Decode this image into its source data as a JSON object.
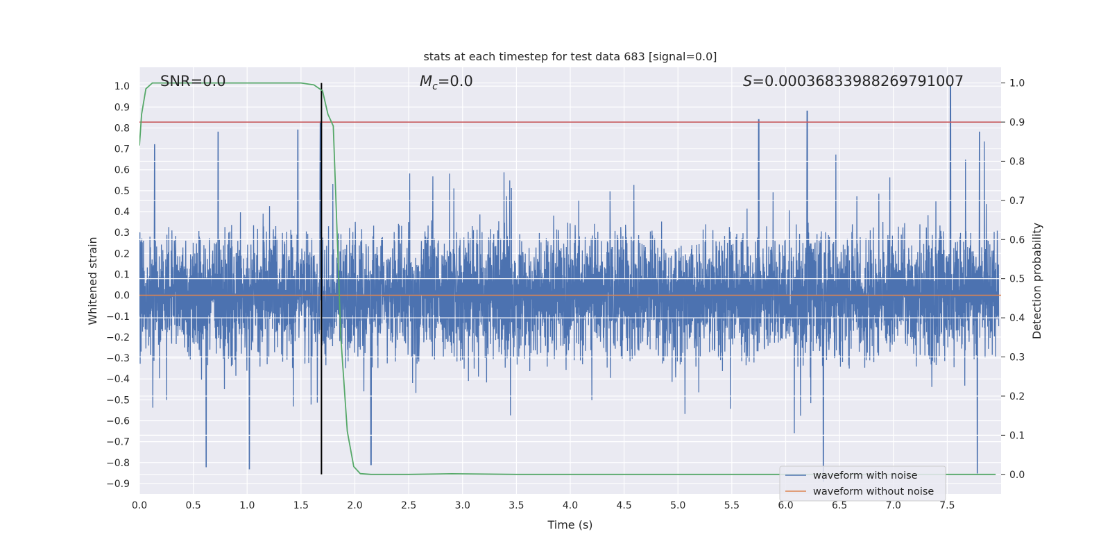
{
  "chart_data": {
    "type": "line",
    "title": "stats at each timestep for test data 683 [signal=0.0]",
    "xlabel": "Time (s)",
    "ylabel": "Whitened strain",
    "y2label": "Detection probability",
    "xlim": [
      0.0,
      8.0
    ],
    "ylim": [
      -0.95,
      1.09
    ],
    "y2lim": [
      -0.05,
      1.04
    ],
    "x_ticks": [
      "0.0",
      "0.5",
      "1.0",
      "1.5",
      "2.0",
      "2.5",
      "3.0",
      "3.5",
      "4.0",
      "4.5",
      "5.0",
      "5.5",
      "6.0",
      "6.5",
      "7.0",
      "7.5"
    ],
    "y_ticks": [
      "1.0",
      "0.9",
      "0.8",
      "0.7",
      "0.6",
      "0.5",
      "0.4",
      "0.3",
      "0.2",
      "0.1",
      "0.0",
      "-0.1",
      "-0.2",
      "-0.3",
      "-0.4",
      "-0.5",
      "-0.6",
      "-0.7",
      "-0.8",
      "-0.9"
    ],
    "y2_ticks": [
      "1.0",
      "0.9",
      "0.8",
      "0.7",
      "0.6",
      "0.5",
      "0.4",
      "0.3",
      "0.2",
      "0.1",
      "0.0"
    ],
    "annotations": {
      "snr": "SNR=0.0",
      "mc_symbol": "M",
      "mc_sub": "c",
      "mc_value": "=0.0",
      "s_symbol": "S",
      "s_value": "=0.00036833988269791007"
    },
    "legend": {
      "position": "lower-right",
      "entries": [
        "waveform with noise",
        "waveform without noise"
      ]
    },
    "colors": {
      "noise": "#4c72b0",
      "clean": "#dd8452",
      "probability": "#55a868",
      "threshold": "#c44e52",
      "marker": "#000000",
      "background": "#eaeaf2",
      "grid": "#ffffff"
    },
    "series": [
      {
        "name": "waveform with noise",
        "axis": "left",
        "style": "dense noise, amplitude approx 0.4 typical, peaks to about 1.0 near t=7.5 and dips to about -0.85",
        "peaks": [
          [
            0.14,
            0.72
          ],
          [
            0.73,
            0.78
          ],
          [
            1.47,
            0.79
          ],
          [
            1.68,
            0.83
          ],
          [
            5.75,
            0.84
          ],
          [
            6.2,
            0.88
          ],
          [
            7.53,
            1.0
          ],
          [
            7.8,
            0.78
          ]
        ],
        "troughs": [
          [
            0.62,
            -0.82
          ],
          [
            1.02,
            -0.83
          ],
          [
            2.15,
            -0.81
          ],
          [
            6.35,
            -0.89
          ],
          [
            7.78,
            -0.85
          ]
        ]
      },
      {
        "name": "waveform without noise",
        "axis": "left",
        "x": [
          0.0,
          8.0
        ],
        "y": [
          0.0,
          0.0
        ]
      },
      {
        "name": "detection probability",
        "axis": "right",
        "x": [
          0.0,
          0.02,
          0.06,
          0.12,
          0.3,
          1.0,
          1.5,
          1.62,
          1.7,
          1.75,
          1.8,
          1.87,
          1.93,
          1.99,
          2.05,
          2.15,
          2.5,
          2.9,
          3.5,
          4.5,
          6.0,
          7.0,
          7.95
        ],
        "y": [
          0.84,
          0.92,
          0.985,
          1.0,
          1.0,
          1.0,
          1.0,
          0.995,
          0.98,
          0.92,
          0.89,
          0.35,
          0.11,
          0.02,
          0.002,
          0.0,
          0.0,
          0.0015,
          0.0,
          0.0,
          0.0,
          0.0,
          0.0
        ]
      },
      {
        "name": "threshold",
        "axis": "right",
        "x": [
          0.0,
          8.0
        ],
        "y": [
          0.9,
          0.9
        ]
      },
      {
        "name": "prediction marker",
        "axis": "right",
        "x": [
          1.69,
          1.69
        ],
        "y": [
          0.0,
          1.0
        ]
      }
    ]
  }
}
